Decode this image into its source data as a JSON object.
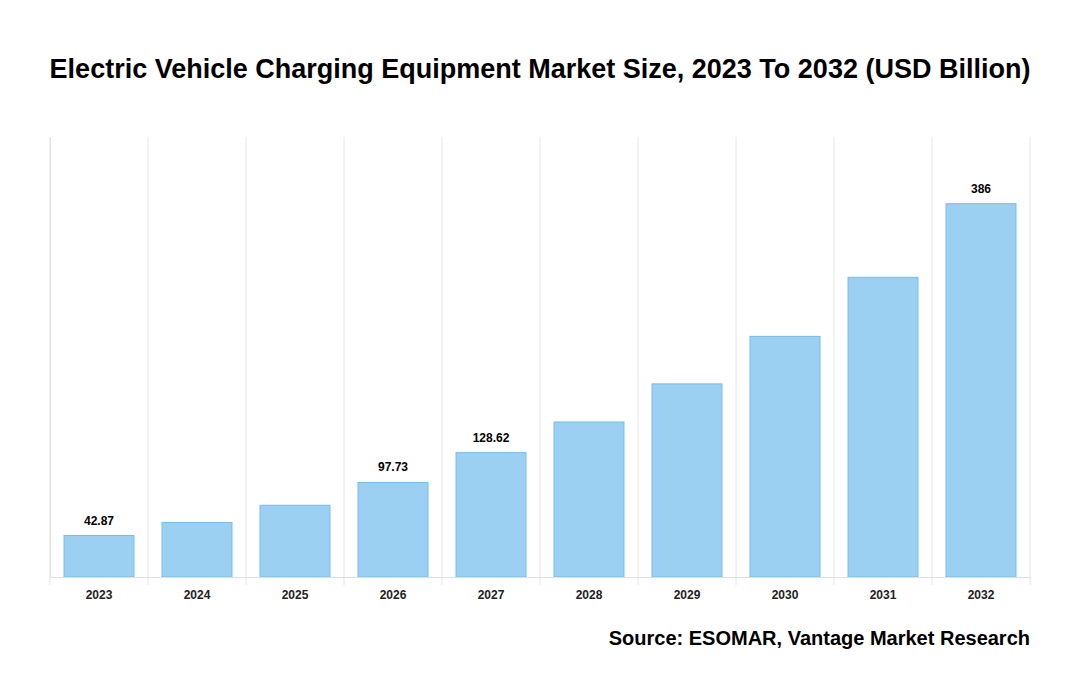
{
  "chart_data": {
    "type": "bar",
    "title": "Electric Vehicle Charging Equipment Market Size, 2023 To 2032 (USD Billion)",
    "source": "Source: ESOMAR, Vantage Market Research",
    "categories": [
      "2023",
      "2024",
      "2025",
      "2026",
      "2027",
      "2028",
      "2029",
      "2030",
      "2031",
      "2032"
    ],
    "values": [
      42.87,
      56.4,
      74.2,
      97.73,
      128.62,
      160.3,
      199.7,
      248.8,
      309.9,
      386
    ],
    "value_labels": [
      "42.87",
      null,
      null,
      "97.73",
      "128.62",
      null,
      null,
      null,
      null,
      "386"
    ],
    "data_labels": true,
    "color": "#9bd0f3",
    "ylim": [
      0,
      455
    ],
    "tick_labels": "x",
    "grid": true
  }
}
